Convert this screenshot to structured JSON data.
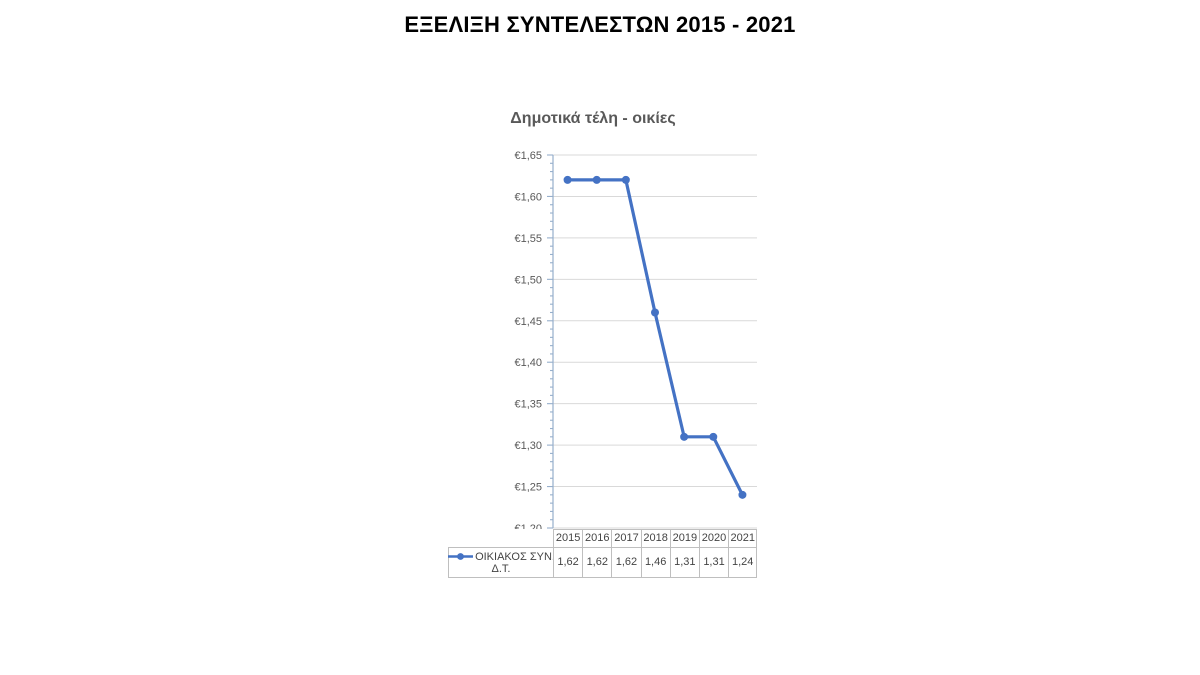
{
  "main_title": "ΕΞΕΛΙΞΗ ΣΥΝΤΕΛΕΣΤΩΝ 2015 - 2021",
  "chart_data": {
    "type": "line",
    "title": "Δημοτικά τέλη - οικίες",
    "categories": [
      "2015",
      "2016",
      "2017",
      "2018",
      "2019",
      "2020",
      "2021"
    ],
    "series": [
      {
        "name": "ΟΙΚΙΑΚΟΣ ΣΥΝ. Δ.Τ.",
        "values": [
          1.62,
          1.62,
          1.62,
          1.46,
          1.31,
          1.31,
          1.24
        ],
        "display_values": [
          "1,62",
          "1,62",
          "1,62",
          "1,46",
          "1,31",
          "1,31",
          "1,24"
        ]
      }
    ],
    "ylim": [
      1.2,
      1.65
    ],
    "y_major_step": 0.05,
    "y_minor_step": 0.01,
    "y_tick_labels": [
      "€1,65",
      "€1,60",
      "€1,55",
      "€1,50",
      "€1,45",
      "€1,40",
      "€1,35",
      "€1,30",
      "€1,25",
      "€1,20"
    ],
    "currency_prefix": "€",
    "grid": true,
    "legend_position": "data-table-left",
    "legend": {
      "line1": "ΟΙΚΙΑΚΟΣ ΣΥΝ.",
      "line2": "Δ.Τ."
    }
  },
  "colors": {
    "series": "#4472C4",
    "axis": "#96AFCC",
    "gridline": "#D9D9D9",
    "table_border": "#BFBFBF",
    "tick_text": "#595959",
    "table_text": "#444444",
    "chart_title": "#595959",
    "main_title": "#000000"
  }
}
